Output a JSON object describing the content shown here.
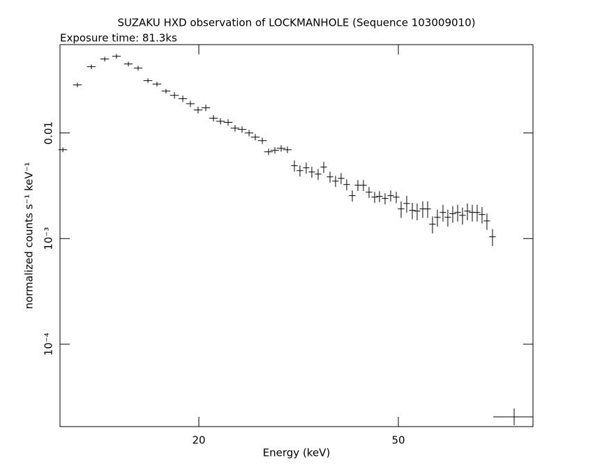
{
  "chart_data": {
    "type": "scatter",
    "title": "SUZAKU HXD observation of LOCKMANHOLE (Sequence 103009010)",
    "subtitle": "Exposure time: 81.3ks",
    "x_label": "Energy (keV)",
    "y_label": "normalized counts s⁻¹ keV⁻¹",
    "xscale": "log",
    "yscale": "log",
    "xlim": [
      10.57,
      92.8
    ],
    "ylim": [
      1.66e-05,
      0.0686
    ],
    "xticks": [
      20,
      50
    ],
    "yticks": [
      0.01,
      {
        "value": 0.001,
        "label": "10⁻³"
      },
      {
        "value": 0.0001,
        "label": "10⁻⁴"
      }
    ],
    "color": "#000000",
    "x": [
      10.71,
      11.45,
      12.21,
      12.98,
      13.7,
      14.47,
      15.13,
      15.83,
      16.5,
      17.2,
      17.88,
      18.58,
      19.24,
      19.93,
      20.65,
      21.39,
      22.09,
      22.88,
      23.62,
      24.39,
      25.19,
      25.92,
      26.77,
      27.55,
      28.36,
      29.19,
      30.04,
      31.02,
      31.82,
      32.75,
      33.6,
      34.59,
      35.49,
      36.53,
      37.47,
      38.44,
      39.44,
      40.47,
      41.52,
      42.59,
      43.7,
      44.84,
      45.85,
      47.04,
      48.27,
      49.52,
      50.64,
      51.96,
      53.31,
      54.51,
      55.93,
      57.2,
      58.49,
      59.82,
      61.37,
      62.76,
      64.19,
      65.65,
      67.13,
      68.66,
      70.22,
      71.81,
      73.44,
      75.1,
      77.05
    ],
    "xerr": [
      0.21,
      0.23,
      0.24,
      0.26,
      0.27,
      0.29,
      0.3,
      0.32,
      0.33,
      0.34,
      0.36,
      0.37,
      0.38,
      0.4,
      0.41,
      0.43,
      0.44,
      0.46,
      0.47,
      0.49,
      0.5,
      0.52,
      0.54,
      0.55,
      0.57,
      0.58,
      0.6,
      0.47,
      0.48,
      0.49,
      0.5,
      0.52,
      0.53,
      0.55,
      0.56,
      0.58,
      0.59,
      0.61,
      0.62,
      0.64,
      0.66,
      0.67,
      0.69,
      0.71,
      0.72,
      0.74,
      0.76,
      0.78,
      0.8,
      0.82,
      0.84,
      0.86,
      0.88,
      0.9,
      0.92,
      0.94,
      0.96,
      0.98,
      1.01,
      1.03,
      1.05,
      1.08,
      1.1,
      1.13,
      1.16
    ],
    "values": [
      0.00694,
      0.0285,
      0.0424,
      0.0501,
      0.0532,
      0.045,
      0.0411,
      0.0313,
      0.029,
      0.0249,
      0.0227,
      0.0211,
      0.0189,
      0.0165,
      0.0173,
      0.0138,
      0.0129,
      0.0126,
      0.0111,
      0.0108,
      0.01,
      0.00913,
      0.00846,
      0.00663,
      0.00684,
      0.00716,
      0.00694,
      0.0049,
      0.0044,
      0.00468,
      0.00427,
      0.00408,
      0.00475,
      0.00384,
      0.0035,
      0.00372,
      0.00325,
      0.00255,
      0.0032,
      0.0032,
      0.00275,
      0.00247,
      0.00251,
      0.0024,
      0.00255,
      0.00247,
      0.00191,
      0.00215,
      0.00185,
      0.00182,
      0.00191,
      0.00191,
      0.00137,
      0.00159,
      0.00177,
      0.00159,
      0.00172,
      0.00177,
      0.00166,
      0.00182,
      0.00177,
      0.00177,
      0.00169,
      0.00147,
      0.00104
    ],
    "yerr": [
      0.00035,
      0.0014,
      0.0021,
      0.0025,
      0.0027,
      0.0023,
      0.0021,
      0.0016,
      0.0015,
      0.0012,
      0.0016,
      0.0015,
      0.0013,
      0.0012,
      0.0012,
      0.00097,
      0.0009,
      0.00088,
      0.00078,
      0.00076,
      0.0007,
      0.00064,
      0.00059,
      0.00046,
      0.00048,
      0.0005,
      0.00049,
      0.00059,
      0.00053,
      0.00056,
      0.00051,
      0.00049,
      0.00057,
      0.00046,
      0.00042,
      0.00045,
      0.00039,
      0.00031,
      0.00038,
      0.00038,
      0.00033,
      0.0003,
      0.0003,
      0.00029,
      0.00031,
      0.0003,
      0.00034,
      0.00039,
      0.00033,
      0.00033,
      0.00034,
      0.00034,
      0.00025,
      0.00029,
      0.00032,
      0.00029,
      0.00031,
      0.00032,
      0.0003,
      0.00033,
      0.00032,
      0.00032,
      0.0003,
      0.00026,
      0.00019
    ]
  }
}
